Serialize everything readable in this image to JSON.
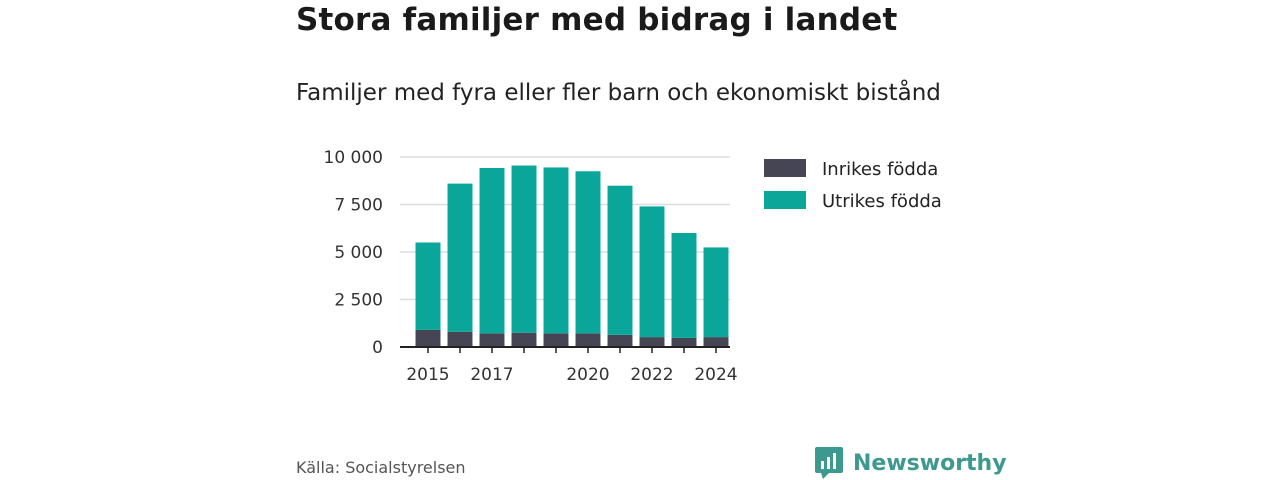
{
  "title": "Stora familjer med bidrag i landet",
  "subtitle": "Familjer med fyra eller fler barn och ekonomiskt bistånd",
  "source": "Källa: Socialstyrelsen",
  "logo": {
    "text": "Newsworthy",
    "icon": "newsworthy-logo-icon"
  },
  "colors": {
    "inrikes": "#464554",
    "utrikes": "#0aa699",
    "grid": "#dddddd",
    "axis": "#222222"
  },
  "chart_data": {
    "type": "bar",
    "stacked": true,
    "categories": [
      "2015",
      "2016",
      "2017",
      "2018",
      "2019",
      "2020",
      "2021",
      "2022",
      "2023",
      "2024"
    ],
    "x_tick_labels": [
      "2015",
      "",
      "2017",
      "",
      "",
      "2020",
      "",
      "2022",
      "",
      "2024"
    ],
    "series": [
      {
        "name": "Inrikes födda",
        "color": "#464554",
        "values": [
          900,
          800,
          720,
          750,
          720,
          720,
          640,
          520,
          480,
          520
        ]
      },
      {
        "name": "Utrikes födda",
        "color": "#0aa699",
        "values": [
          4600,
          7800,
          8700,
          8800,
          8730,
          8530,
          7850,
          6880,
          5520,
          4720
        ]
      }
    ],
    "yticks": [
      0,
      2500,
      5000,
      7500,
      10000
    ],
    "ytick_labels": [
      "0",
      "2 500",
      "5 000",
      "7 500",
      "10 000"
    ],
    "ylim": [
      0,
      10000
    ],
    "grid": true,
    "legend_position": "right"
  }
}
